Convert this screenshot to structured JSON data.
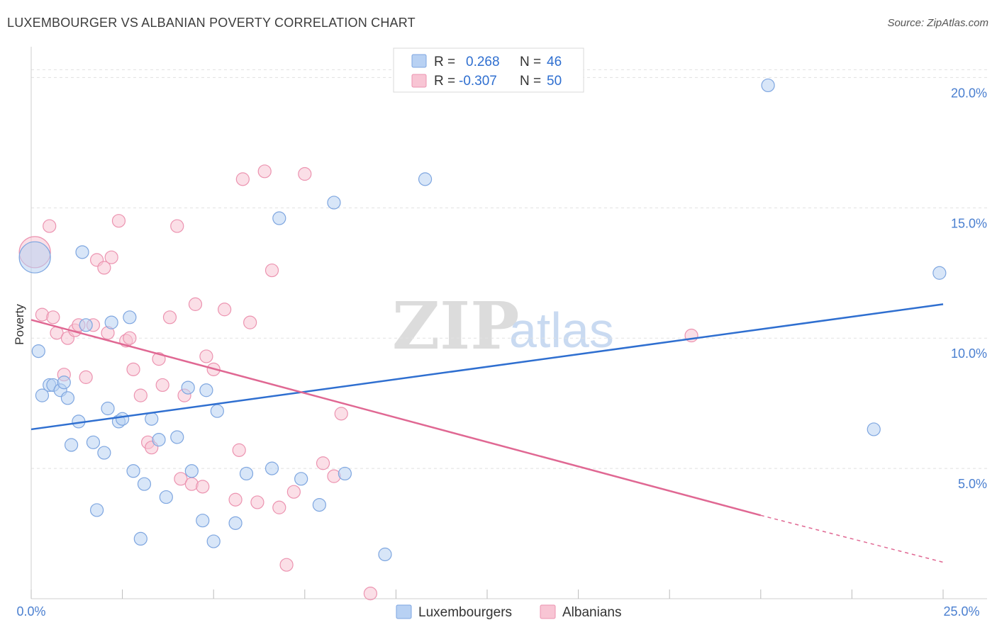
{
  "header": {
    "title": "LUXEMBOURGER VS ALBANIAN POVERTY CORRELATION CHART",
    "source": "Source: ZipAtlas.com"
  },
  "watermark": {
    "zip": "ZIP",
    "atlas": "atlas"
  },
  "legend": {
    "r_label": "R =",
    "n_label": "N =",
    "rows": [
      {
        "r": "0.268",
        "n": "46"
      },
      {
        "r": "-0.307",
        "n": "50"
      }
    ]
  },
  "colors": {
    "blue_fill": "#b8d1f3",
    "blue_stroke": "#7ea6e0",
    "blue_line": "#2f6fd0",
    "pink_fill": "#f8c5d4",
    "pink_stroke": "#ec93b0",
    "pink_line": "#e06893",
    "grid": "#e1e1e1",
    "tick_text": "#4a7fd0"
  },
  "chart_data": {
    "type": "scatter",
    "title": "LUXEMBOURGER VS ALBANIAN POVERTY CORRELATION CHART",
    "xlabel": "",
    "ylabel": "Poverty",
    "xlim": [
      0,
      25
    ],
    "ylim": [
      0,
      20.8
    ],
    "x_tick_labels": [
      "0.0%",
      "25.0%"
    ],
    "y_ticks": [
      5,
      10,
      15,
      20
    ],
    "y_tick_labels": [
      "5.0%",
      "10.0%",
      "15.0%",
      "20.0%"
    ],
    "grid": true,
    "legend_position": "top-center",
    "series": [
      {
        "name": "Luxembourgers",
        "color": "#7ea6e0",
        "r": 0.268,
        "n": 46,
        "trend": {
          "x": [
            0,
            25
          ],
          "y": [
            6.5,
            11.3
          ]
        },
        "points": [
          {
            "x": 0.1,
            "y": 13.1,
            "big": true
          },
          {
            "x": 0.2,
            "y": 9.5
          },
          {
            "x": 0.3,
            "y": 7.8
          },
          {
            "x": 0.5,
            "y": 8.2
          },
          {
            "x": 0.6,
            "y": 8.2
          },
          {
            "x": 0.8,
            "y": 8.0
          },
          {
            "x": 0.9,
            "y": 8.3
          },
          {
            "x": 1.0,
            "y": 7.7
          },
          {
            "x": 1.1,
            "y": 5.9
          },
          {
            "x": 1.3,
            "y": 6.8
          },
          {
            "x": 1.4,
            "y": 13.3
          },
          {
            "x": 1.5,
            "y": 10.5
          },
          {
            "x": 1.7,
            "y": 6.0
          },
          {
            "x": 1.8,
            "y": 3.4
          },
          {
            "x": 2.0,
            "y": 5.6
          },
          {
            "x": 2.1,
            "y": 7.3
          },
          {
            "x": 2.2,
            "y": 10.6
          },
          {
            "x": 2.4,
            "y": 6.8
          },
          {
            "x": 2.5,
            "y": 6.9
          },
          {
            "x": 2.7,
            "y": 10.8
          },
          {
            "x": 2.8,
            "y": 4.9
          },
          {
            "x": 3.0,
            "y": 2.3
          },
          {
            "x": 3.1,
            "y": 4.4
          },
          {
            "x": 3.3,
            "y": 6.9
          },
          {
            "x": 3.5,
            "y": 6.1
          },
          {
            "x": 3.7,
            "y": 3.9
          },
          {
            "x": 4.0,
            "y": 6.2
          },
          {
            "x": 4.3,
            "y": 8.1
          },
          {
            "x": 4.4,
            "y": 4.9
          },
          {
            "x": 4.7,
            "y": 3.0
          },
          {
            "x": 4.8,
            "y": 8.0
          },
          {
            "x": 5.0,
            "y": 2.2
          },
          {
            "x": 5.1,
            "y": 7.2
          },
          {
            "x": 5.6,
            "y": 2.9
          },
          {
            "x": 5.9,
            "y": 4.8
          },
          {
            "x": 6.6,
            "y": 5.0
          },
          {
            "x": 6.8,
            "y": 14.6
          },
          {
            "x": 7.4,
            "y": 4.6
          },
          {
            "x": 7.9,
            "y": 3.6
          },
          {
            "x": 8.3,
            "y": 15.2
          },
          {
            "x": 8.6,
            "y": 4.8
          },
          {
            "x": 9.7,
            "y": 1.7
          },
          {
            "x": 10.8,
            "y": 16.1
          },
          {
            "x": 20.2,
            "y": 19.7
          },
          {
            "x": 23.1,
            "y": 6.5
          },
          {
            "x": 24.9,
            "y": 12.5
          }
        ]
      },
      {
        "name": "Albanians",
        "color": "#ec93b0",
        "r": -0.307,
        "n": 50,
        "trend": {
          "x": [
            0,
            20
          ],
          "y": [
            10.7,
            3.2
          ]
        },
        "trend_dashed": {
          "x": [
            20,
            25
          ],
          "y": [
            3.2,
            1.4
          ]
        },
        "points": [
          {
            "x": 0.1,
            "y": 13.3,
            "big": true
          },
          {
            "x": 0.3,
            "y": 10.9
          },
          {
            "x": 0.5,
            "y": 14.3
          },
          {
            "x": 0.6,
            "y": 10.8
          },
          {
            "x": 0.7,
            "y": 10.2
          },
          {
            "x": 0.9,
            "y": 8.6
          },
          {
            "x": 1.0,
            "y": 10.0
          },
          {
            "x": 1.2,
            "y": 10.3
          },
          {
            "x": 1.3,
            "y": 10.5
          },
          {
            "x": 1.5,
            "y": 8.5
          },
          {
            "x": 1.7,
            "y": 10.5
          },
          {
            "x": 1.8,
            "y": 13.0
          },
          {
            "x": 2.0,
            "y": 12.7
          },
          {
            "x": 2.1,
            "y": 10.2
          },
          {
            "x": 2.2,
            "y": 13.1
          },
          {
            "x": 2.4,
            "y": 14.5
          },
          {
            "x": 2.6,
            "y": 9.9
          },
          {
            "x": 2.7,
            "y": 10.0
          },
          {
            "x": 2.8,
            "y": 8.8
          },
          {
            "x": 3.0,
            "y": 7.8
          },
          {
            "x": 3.2,
            "y": 6.0
          },
          {
            "x": 3.3,
            "y": 5.8
          },
          {
            "x": 3.5,
            "y": 9.2
          },
          {
            "x": 3.6,
            "y": 8.2
          },
          {
            "x": 3.8,
            "y": 10.8
          },
          {
            "x": 4.0,
            "y": 14.3
          },
          {
            "x": 4.1,
            "y": 4.6
          },
          {
            "x": 4.2,
            "y": 7.8
          },
          {
            "x": 4.4,
            "y": 4.4
          },
          {
            "x": 4.5,
            "y": 11.3
          },
          {
            "x": 4.7,
            "y": 4.3
          },
          {
            "x": 4.8,
            "y": 9.3
          },
          {
            "x": 5.0,
            "y": 8.8
          },
          {
            "x": 5.3,
            "y": 11.1
          },
          {
            "x": 5.6,
            "y": 3.8
          },
          {
            "x": 5.7,
            "y": 5.7
          },
          {
            "x": 5.8,
            "y": 16.1
          },
          {
            "x": 6.0,
            "y": 10.6
          },
          {
            "x": 6.2,
            "y": 3.7
          },
          {
            "x": 6.4,
            "y": 16.4
          },
          {
            "x": 6.6,
            "y": 12.6
          },
          {
            "x": 6.8,
            "y": 3.5
          },
          {
            "x": 7.0,
            "y": 1.3
          },
          {
            "x": 7.2,
            "y": 4.1
          },
          {
            "x": 7.5,
            "y": 16.3
          },
          {
            "x": 8.0,
            "y": 5.2
          },
          {
            "x": 8.3,
            "y": 4.7
          },
          {
            "x": 8.5,
            "y": 7.1
          },
          {
            "x": 9.3,
            "y": 0.2
          },
          {
            "x": 18.1,
            "y": 10.1
          }
        ]
      }
    ]
  }
}
